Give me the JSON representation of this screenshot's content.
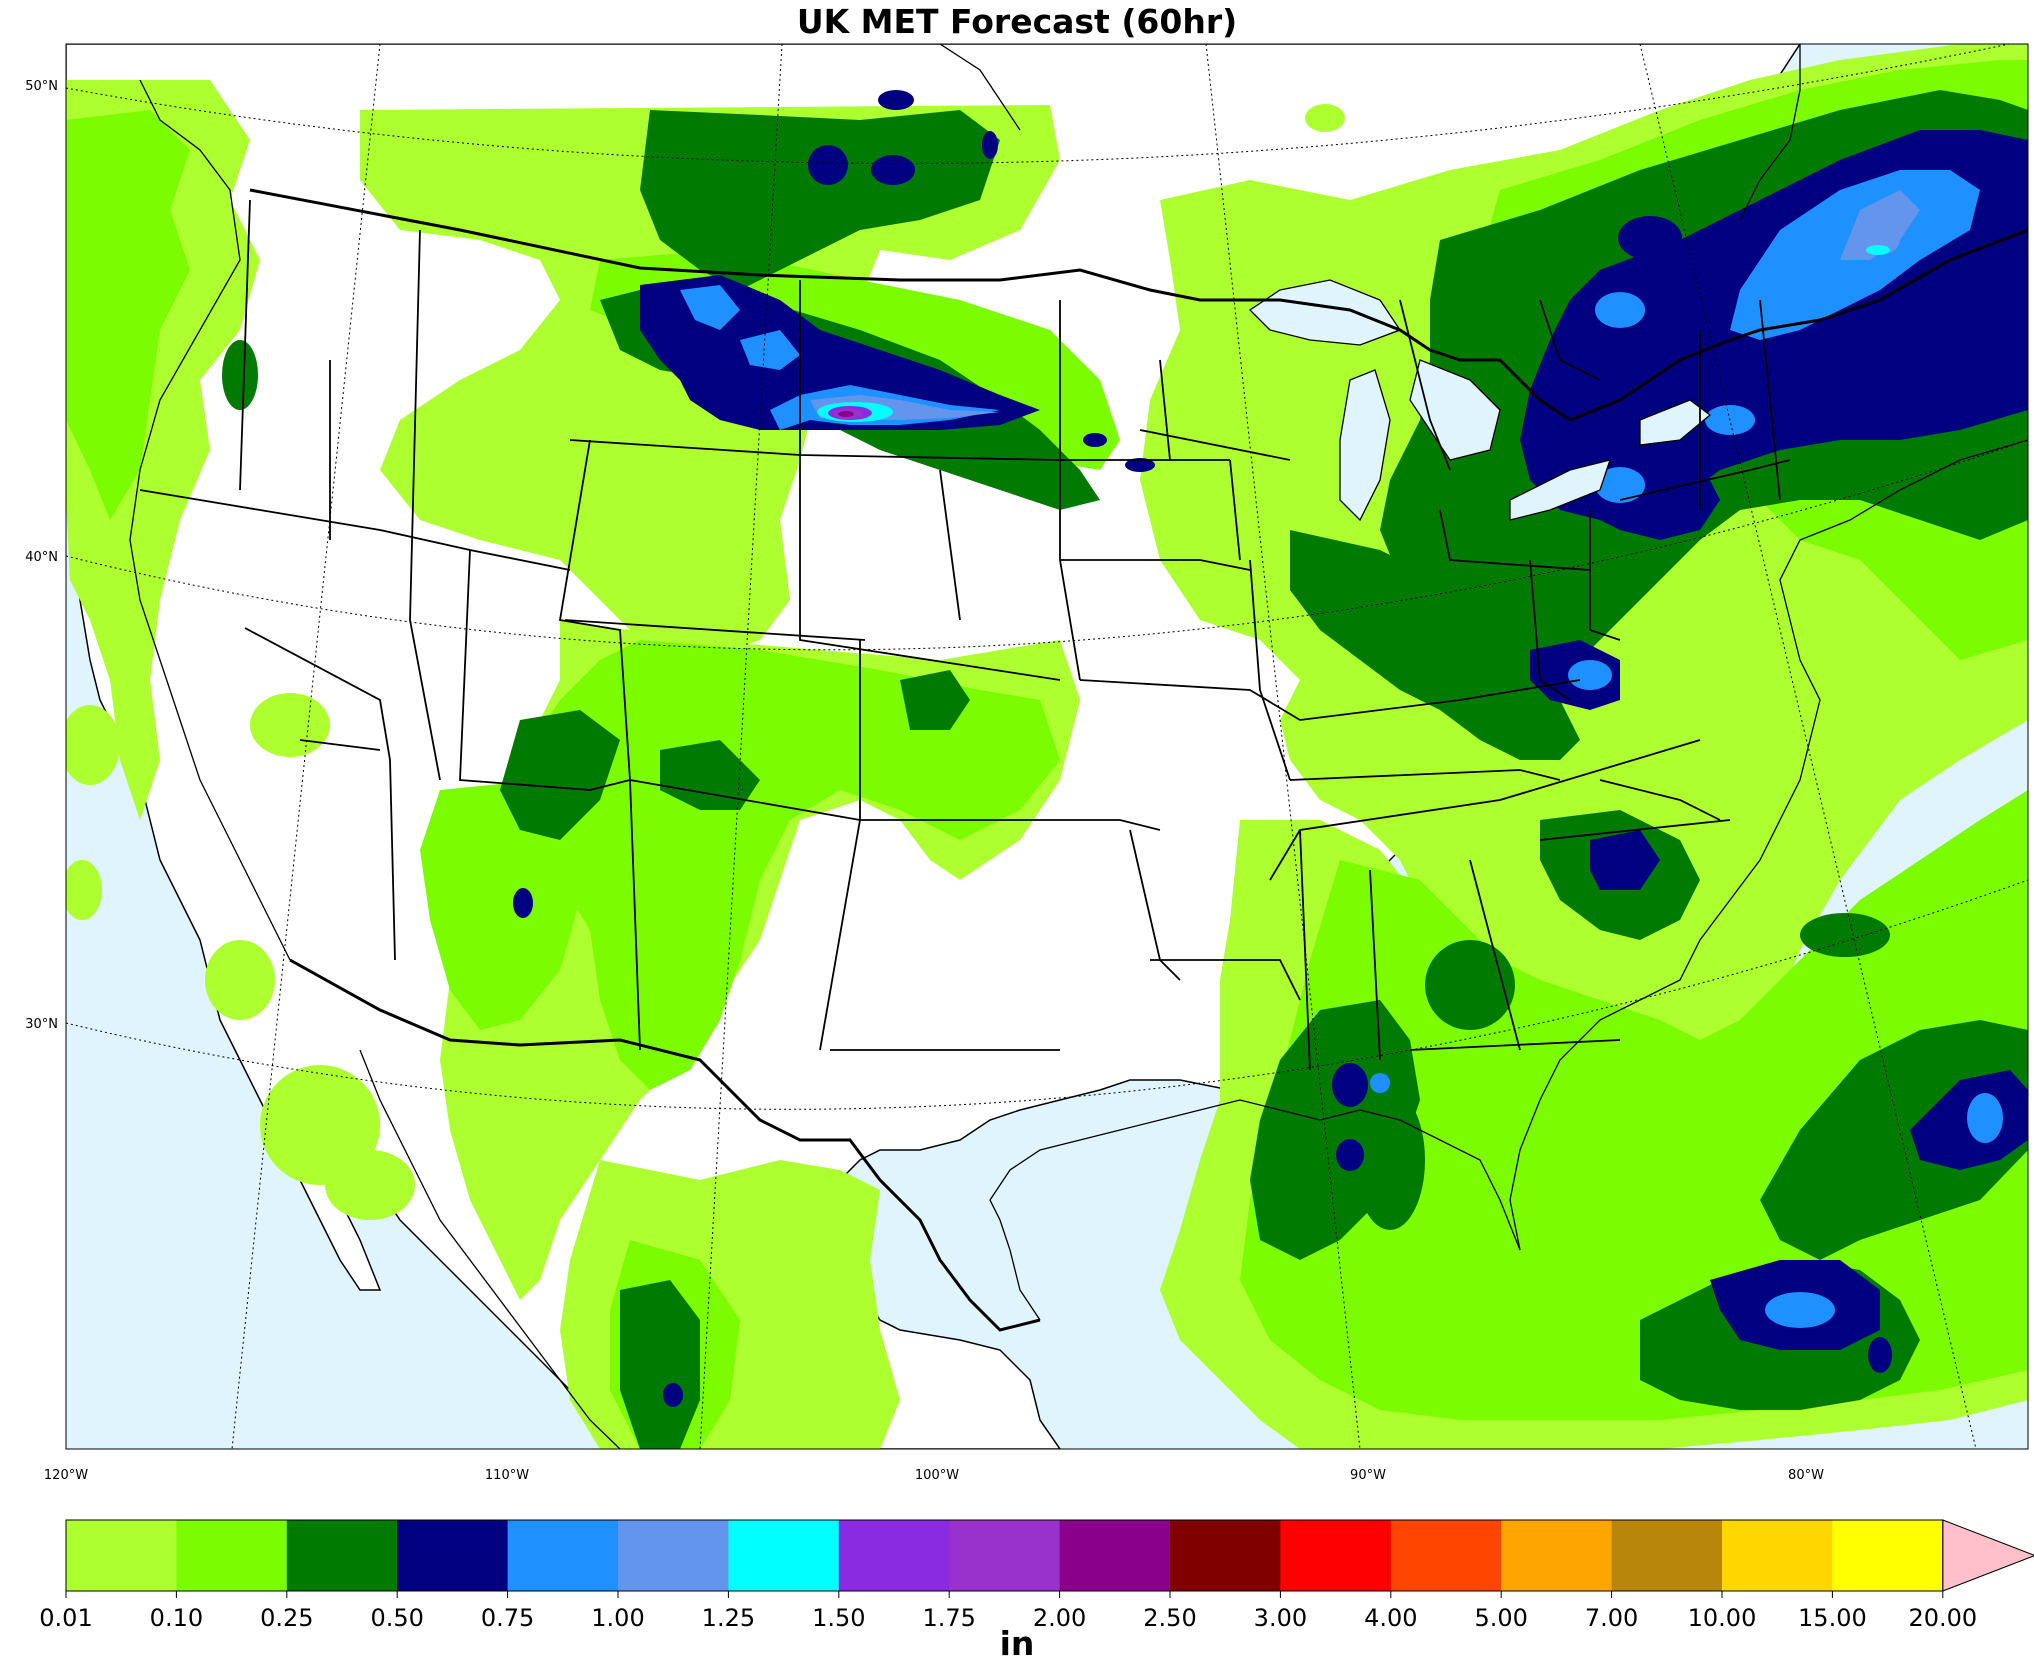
{
  "title": "UK MET Forecast (60hr)",
  "colors": {
    "ocean": "#dff4fd",
    "land": "#ffffff",
    "c_001": "#adff2f",
    "c_010": "#7cfc00",
    "c_025": "#007a00",
    "c_050": "#000080",
    "c_075": "#1e90ff",
    "c_100": "#6495ed",
    "c_125": "#00ffff",
    "c_150": "#8a2be2",
    "c_175": "#9932cc",
    "c_200": "#8b008b",
    "over": "#ffc0cb"
  },
  "lat_labels": [
    "50°N",
    "40°N",
    "30°N"
  ],
  "lon_labels": [
    "120°W",
    "110°W",
    "100°W",
    "90°W",
    "80°W"
  ],
  "colorbar": {
    "unit": "in",
    "extend": "max",
    "levels": [
      "0.01",
      "0.10",
      "0.25",
      "0.50",
      "0.75",
      "1.00",
      "1.25",
      "1.50",
      "1.75",
      "2.00",
      "2.50",
      "3.00",
      "4.00",
      "5.00",
      "7.00",
      "10.00",
      "15.00",
      "20.00"
    ],
    "colors": [
      "#adff2f",
      "#7cfc00",
      "#007a00",
      "#000080",
      "#1e90ff",
      "#6495ed",
      "#00ffff",
      "#8a2be2",
      "#9932cc",
      "#8b008b",
      "#800000",
      "#ff0000",
      "#ff4500",
      "#ffa500",
      "#b8860b",
      "#ffd700",
      "#ffff00"
    ],
    "over_color": "#ffc0cb"
  }
}
